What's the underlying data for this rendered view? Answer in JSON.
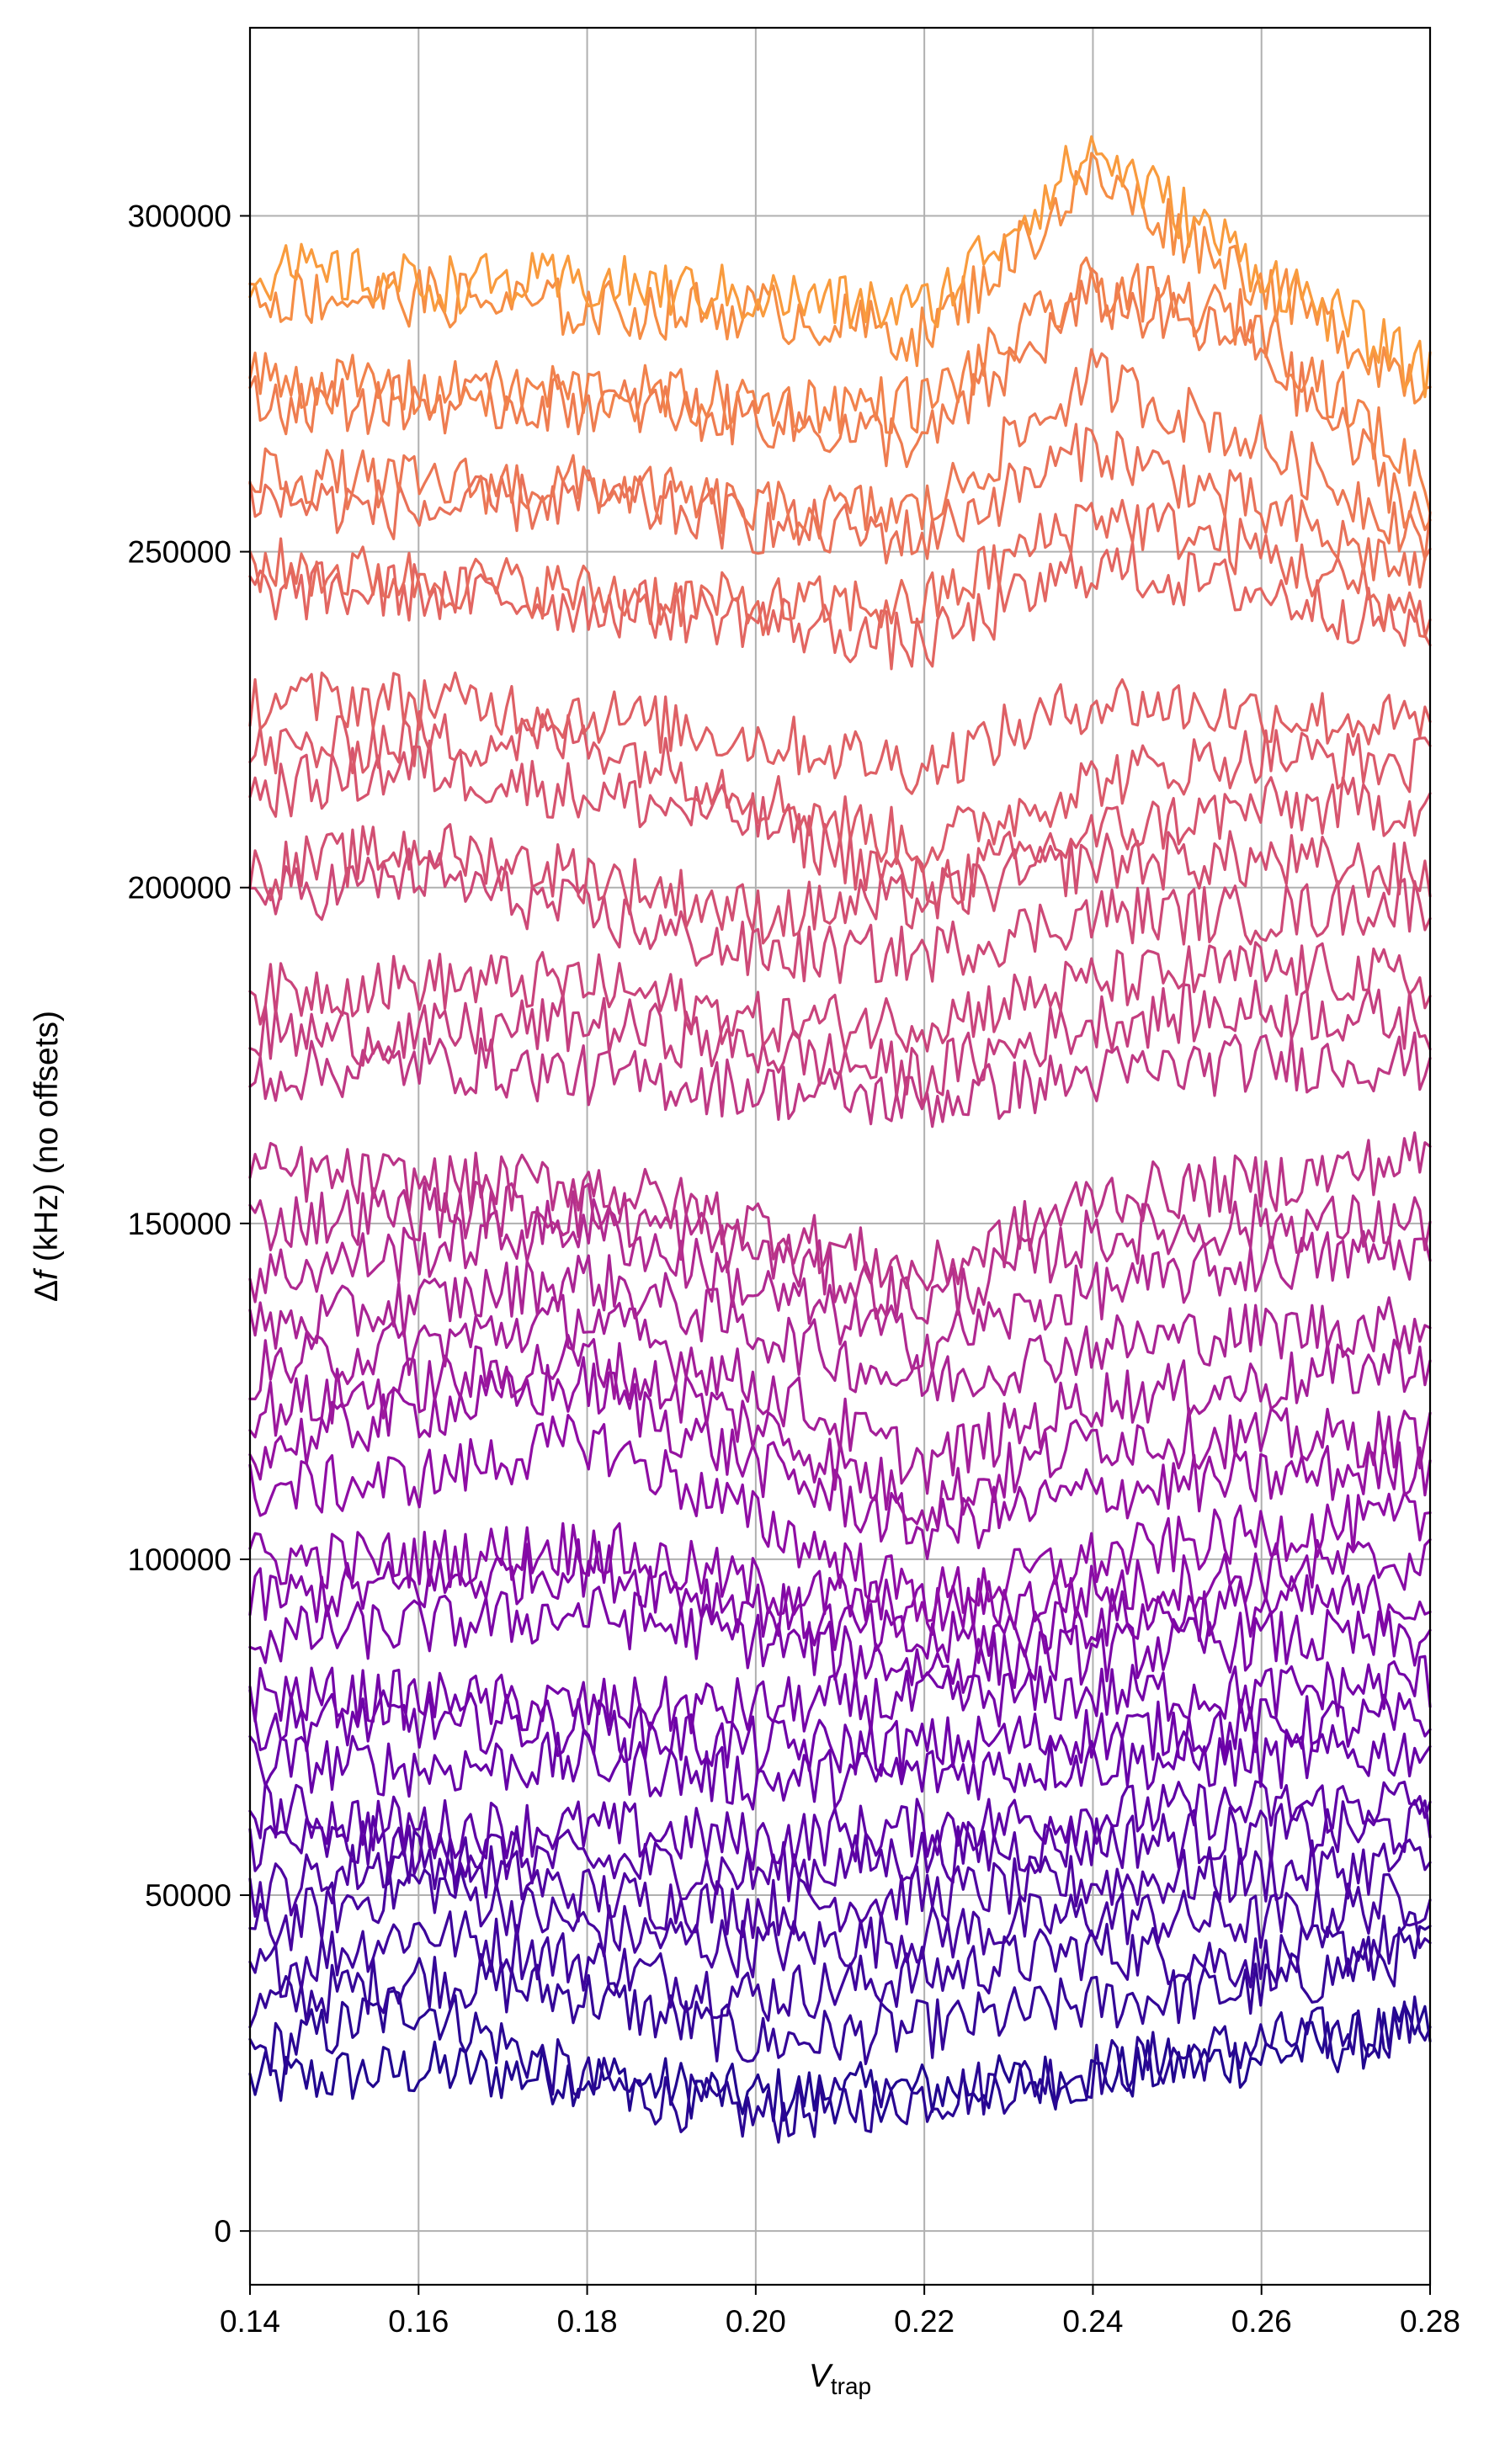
{
  "chart_data": {
    "type": "line",
    "title": "",
    "xlabel_main": "V",
    "xlabel_sub": "trap",
    "ylabel_prefix": "Δ",
    "ylabel_italic": "f",
    "ylabel_rest": " (kHz) (no offsets)",
    "xlim": [
      0.14,
      0.28
    ],
    "ylim": [
      -8000,
      328000
    ],
    "xticks": [
      0.14,
      0.16,
      0.18,
      0.2,
      0.22,
      0.24,
      0.26,
      0.28
    ],
    "xtick_labels": [
      "0.14",
      "0.16",
      "0.18",
      "0.20",
      "0.22",
      "0.24",
      "0.26",
      "0.28"
    ],
    "yticks": [
      0,
      50000,
      100000,
      150000,
      200000,
      250000,
      300000
    ],
    "ytick_labels": [
      "0",
      "50000",
      "100000",
      "150000",
      "200000",
      "250000",
      "300000"
    ],
    "grid": true,
    "colormap": "plasma",
    "noise_amplitude": 4500,
    "series": [
      {
        "x": [
          0.14,
          0.16,
          0.18,
          0.2,
          0.22,
          0.24,
          0.26,
          0.28
        ],
        "y": [
          22000,
          24000,
          23000,
          20000,
          21000,
          23000,
          26000,
          30000
        ]
      },
      {
        "x": [
          0.14,
          0.16,
          0.18,
          0.2,
          0.22,
          0.24,
          0.26,
          0.28
        ],
        "y": [
          26000,
          34000,
          22000,
          17000,
          20000,
          24000,
          28000,
          31000
        ]
      },
      {
        "x": [
          0.14,
          0.16,
          0.18,
          0.2,
          0.22,
          0.24,
          0.26,
          0.28
        ],
        "y": [
          33000,
          38000,
          35000,
          28000,
          30000,
          34000,
          36000,
          42000
        ]
      },
      {
        "x": [
          0.14,
          0.16,
          0.18,
          0.2,
          0.22,
          0.24,
          0.26,
          0.28
        ],
        "y": [
          38000,
          45000,
          40000,
          35000,
          38000,
          42000,
          40000,
          44000
        ]
      },
      {
        "x": [
          0.14,
          0.16,
          0.18,
          0.2,
          0.22,
          0.24,
          0.26,
          0.28
        ],
        "y": [
          44000,
          52000,
          45000,
          42000,
          44000,
          47000,
          46000,
          50000
        ]
      },
      {
        "x": [
          0.14,
          0.16,
          0.18,
          0.2,
          0.22,
          0.24,
          0.26,
          0.28
        ],
        "y": [
          50000,
          56000,
          50000,
          48000,
          50000,
          52000,
          53000,
          55000
        ]
      },
      {
        "x": [
          0.14,
          0.16,
          0.18,
          0.2,
          0.22,
          0.24,
          0.26,
          0.28
        ],
        "y": [
          58000,
          57000,
          55000,
          53000,
          56000,
          58000,
          59000,
          60000
        ]
      },
      {
        "x": [
          0.14,
          0.16,
          0.18,
          0.2,
          0.22,
          0.24,
          0.26,
          0.28
        ],
        "y": [
          63000,
          60000,
          60000,
          58000,
          60000,
          62000,
          63000,
          64000
        ]
      },
      {
        "x": [
          0.14,
          0.16,
          0.18,
          0.2,
          0.22,
          0.24,
          0.26,
          0.28
        ],
        "y": [
          70000,
          69000,
          70000,
          67000,
          68000,
          70000,
          70000,
          72000
        ]
      },
      {
        "x": [
          0.14,
          0.16,
          0.18,
          0.2,
          0.22,
          0.24,
          0.26,
          0.28
        ],
        "y": [
          76000,
          76000,
          75000,
          72000,
          72000,
          74000,
          75000,
          76000
        ]
      },
      {
        "x": [
          0.14,
          0.16,
          0.18,
          0.2,
          0.22,
          0.24,
          0.26,
          0.28
        ],
        "y": [
          80000,
          79000,
          78000,
          78000,
          79000,
          80000,
          80000,
          82000
        ]
      },
      {
        "x": [
          0.14,
          0.16,
          0.18,
          0.2,
          0.22,
          0.24,
          0.26,
          0.28
        ],
        "y": [
          88000,
          90000,
          92000,
          88000,
          84000,
          86000,
          88000,
          88000
        ]
      },
      {
        "x": [
          0.14,
          0.16,
          0.18,
          0.2,
          0.22,
          0.24,
          0.26,
          0.28
        ],
        "y": [
          94000,
          96000,
          99000,
          93000,
          87000,
          91000,
          93000,
          94000
        ]
      },
      {
        "x": [
          0.14,
          0.16,
          0.18,
          0.2,
          0.22,
          0.24,
          0.26,
          0.28
        ],
        "y": [
          100000,
          100000,
          102000,
          96000,
          92000,
          95000,
          98000,
          100000
        ]
      },
      {
        "x": [
          0.14,
          0.16,
          0.18,
          0.2,
          0.22,
          0.24,
          0.26,
          0.28
        ],
        "y": [
          110000,
          112000,
          118000,
          106000,
          94000,
          100000,
          104000,
          106000
        ]
      },
      {
        "x": [
          0.14,
          0.16,
          0.18,
          0.2,
          0.22,
          0.24,
          0.26,
          0.28
        ],
        "y": [
          116000,
          122000,
          126000,
          114000,
          104000,
          110000,
          112000,
          114000
        ]
      },
      {
        "x": [
          0.14,
          0.16,
          0.18,
          0.2,
          0.22,
          0.24,
          0.26,
          0.28
        ],
        "y": [
          122000,
          126000,
          130000,
          120000,
          108000,
          118000,
          118000,
          118000
        ]
      },
      {
        "x": [
          0.14,
          0.16,
          0.18,
          0.2,
          0.22,
          0.24,
          0.26,
          0.28
        ],
        "y": [
          128000,
          132000,
          136000,
          126000,
          114000,
          124000,
          126000,
          130000
        ]
      },
      {
        "x": [
          0.14,
          0.16,
          0.18,
          0.2,
          0.22,
          0.24,
          0.26,
          0.28
        ],
        "y": [
          134000,
          138000,
          142000,
          134000,
          126000,
          132000,
          134000,
          135000
        ]
      },
      {
        "x": [
          0.14,
          0.16,
          0.18,
          0.2,
          0.22,
          0.24,
          0.26,
          0.28
        ],
        "y": [
          142000,
          146000,
          150000,
          140000,
          132000,
          140000,
          144000,
          146000
        ]
      },
      {
        "x": [
          0.14,
          0.16,
          0.18,
          0.2,
          0.22,
          0.24,
          0.26,
          0.28
        ],
        "y": [
          150000,
          152000,
          152000,
          146000,
          138000,
          148000,
          150000,
          150000
        ]
      },
      {
        "x": [
          0.14,
          0.16,
          0.18,
          0.2,
          0.22,
          0.24,
          0.26,
          0.28
        ],
        "y": [
          158000,
          156000,
          156000,
          150000,
          142000,
          154000,
          156000,
          160000
        ]
      },
      {
        "x": [
          0.14,
          0.16,
          0.18,
          0.2,
          0.22,
          0.24,
          0.26,
          0.28
        ],
        "y": [
          172000,
          174000,
          172000,
          170000,
          168000,
          172000,
          174000,
          174000
        ]
      },
      {
        "x": [
          0.14,
          0.16,
          0.18,
          0.2,
          0.22,
          0.24,
          0.26,
          0.28
        ],
        "y": [
          178000,
          178000,
          180000,
          176000,
          172000,
          180000,
          182000,
          180000
        ]
      },
      {
        "x": [
          0.14,
          0.16,
          0.18,
          0.2,
          0.22,
          0.24,
          0.26,
          0.28
        ],
        "y": [
          184000,
          186000,
          186000,
          180000,
          180000,
          186000,
          188000,
          186000
        ]
      },
      {
        "x": [
          0.14,
          0.16,
          0.18,
          0.2,
          0.22,
          0.24,
          0.26,
          0.28
        ],
        "y": [
          198000,
          202000,
          196000,
          190000,
          190000,
          196000,
          196000,
          198000
        ]
      },
      {
        "x": [
          0.14,
          0.16,
          0.18,
          0.2,
          0.22,
          0.24,
          0.26,
          0.28
        ],
        "y": [
          202000,
          206000,
          202000,
          196000,
          198000,
          204000,
          204000,
          202000
        ]
      },
      {
        "x": [
          0.14,
          0.16,
          0.18,
          0.2,
          0.22,
          0.24,
          0.26,
          0.28
        ],
        "y": [
          214000,
          218000,
          214000,
          210000,
          200000,
          208000,
          212000,
          212000
        ]
      },
      {
        "x": [
          0.14,
          0.16,
          0.18,
          0.2,
          0.22,
          0.24,
          0.26,
          0.28
        ],
        "y": [
          220000,
          222000,
          222000,
          214000,
          206000,
          216000,
          220000,
          218000
        ]
      },
      {
        "x": [
          0.14,
          0.16,
          0.18,
          0.2,
          0.22,
          0.24,
          0.26,
          0.28
        ],
        "y": [
          228000,
          228000,
          226000,
          222000,
          218000,
          228000,
          226000,
          224000
        ]
      },
      {
        "x": [
          0.14,
          0.16,
          0.18,
          0.2,
          0.22,
          0.24,
          0.26,
          0.28
        ],
        "y": [
          244000,
          244000,
          242000,
          240000,
          236000,
          248000,
          244000,
          238000
        ]
      },
      {
        "x": [
          0.14,
          0.16,
          0.18,
          0.2,
          0.22,
          0.24,
          0.26,
          0.28
        ],
        "y": [
          248000,
          246000,
          244000,
          242000,
          242000,
          256000,
          250000,
          240000
        ]
      },
      {
        "x": [
          0.14,
          0.16,
          0.18,
          0.2,
          0.22,
          0.24,
          0.26,
          0.28
        ],
        "y": [
          258000,
          256000,
          258000,
          254000,
          252000,
          266000,
          256000,
          246000
        ]
      },
      {
        "x": [
          0.14,
          0.16,
          0.18,
          0.2,
          0.22,
          0.24,
          0.26,
          0.28
        ],
        "y": [
          262000,
          260000,
          260000,
          256000,
          256000,
          276000,
          266000,
          252000
        ]
      },
      {
        "x": [
          0.14,
          0.16,
          0.18,
          0.2,
          0.22,
          0.24,
          0.26,
          0.28
        ],
        "y": [
          272000,
          272000,
          272000,
          270000,
          266000,
          288000,
          280000,
          254000
        ]
      },
      {
        "x": [
          0.14,
          0.16,
          0.18,
          0.2,
          0.22,
          0.24,
          0.26,
          0.28
        ],
        "y": [
          276000,
          274000,
          274000,
          272000,
          272000,
          290000,
          284000,
          260000
        ]
      },
      {
        "x": [
          0.14,
          0.16,
          0.18,
          0.2,
          0.22,
          0.24,
          0.26,
          0.28
        ],
        "y": [
          288000,
          288000,
          286000,
          286000,
          282000,
          306000,
          290000,
          274000
        ]
      },
      {
        "x": [
          0.14,
          0.16,
          0.18,
          0.2,
          0.22,
          0.24,
          0.26,
          0.28
        ],
        "y": [
          292000,
          290000,
          290000,
          288000,
          286000,
          310000,
          292000,
          276000
        ]
      }
    ]
  }
}
